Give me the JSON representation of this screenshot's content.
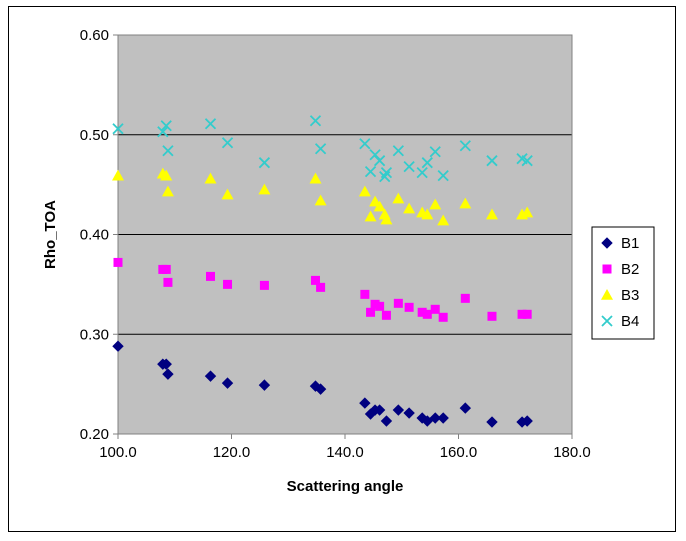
{
  "chart_data": {
    "type": "scatter",
    "title": "",
    "xlabel": "Scattering angle",
    "ylabel": "Rho_TOA",
    "xlim": [
      100.0,
      180.0
    ],
    "ylim": [
      0.2,
      0.6
    ],
    "x_ticks": [
      100,
      120,
      140,
      160,
      180
    ],
    "x_tick_labels": [
      "100.0",
      "120.0",
      "140.0",
      "160.0",
      "180.0"
    ],
    "y_ticks": [
      0.2,
      0.3,
      0.4,
      0.5,
      0.6
    ],
    "y_tick_labels": [
      "0.20",
      "0.30",
      "0.40",
      "0.50",
      "0.60"
    ],
    "grid": "horizontal",
    "plot_background": "#c0c0c0",
    "legend_position": "right",
    "series": [
      {
        "name": "B1",
        "marker": "diamond",
        "color": "#000080",
        "x": [
          100.0,
          107.9,
          108.5,
          108.8,
          116.3,
          119.3,
          125.8,
          134.8,
          135.7,
          143.5,
          144.5,
          145.3,
          146.1,
          147.3,
          149.4,
          151.3,
          153.6,
          154.5,
          155.9,
          157.3,
          161.2,
          165.9,
          171.2,
          172.1
        ],
        "y": [
          0.288,
          0.27,
          0.27,
          0.26,
          0.258,
          0.251,
          0.249,
          0.248,
          0.245,
          0.231,
          0.22,
          0.224,
          0.224,
          0.213,
          0.224,
          0.221,
          0.216,
          0.213,
          0.216,
          0.216,
          0.226,
          0.212,
          0.212,
          0.213
        ]
      },
      {
        "name": "B2",
        "marker": "square",
        "color": "#ff00ff",
        "x": [
          100.0,
          107.9,
          108.5,
          108.8,
          116.3,
          119.3,
          125.8,
          134.8,
          135.7,
          143.5,
          144.5,
          145.3,
          146.1,
          147.3,
          149.4,
          151.3,
          153.6,
          154.5,
          155.9,
          157.3,
          161.2,
          165.9,
          171.2,
          172.1
        ],
        "y": [
          0.372,
          0.365,
          0.365,
          0.352,
          0.358,
          0.35,
          0.349,
          0.354,
          0.347,
          0.34,
          0.322,
          0.33,
          0.328,
          0.319,
          0.331,
          0.327,
          0.322,
          0.32,
          0.325,
          0.317,
          0.336,
          0.318,
          0.32,
          0.32
        ]
      },
      {
        "name": "B3",
        "marker": "triangle",
        "color": "#ffff00",
        "x": [
          100.0,
          107.9,
          108.5,
          108.8,
          116.3,
          119.3,
          125.8,
          134.8,
          135.7,
          143.5,
          144.5,
          145.3,
          146.1,
          147.0,
          147.3,
          149.4,
          151.3,
          153.6,
          154.5,
          155.9,
          157.3,
          161.2,
          165.9,
          171.2,
          172.1
        ],
        "y": [
          0.459,
          0.461,
          0.459,
          0.443,
          0.456,
          0.44,
          0.445,
          0.456,
          0.434,
          0.443,
          0.418,
          0.433,
          0.428,
          0.42,
          0.415,
          0.436,
          0.426,
          0.422,
          0.42,
          0.43,
          0.414,
          0.431,
          0.42,
          0.42,
          0.422
        ]
      },
      {
        "name": "B4",
        "marker": "x",
        "color": "#33cccc",
        "x": [
          100.0,
          107.9,
          108.5,
          108.8,
          116.3,
          119.3,
          125.8,
          134.8,
          135.7,
          143.5,
          144.5,
          145.3,
          146.1,
          147.0,
          147.3,
          149.4,
          151.3,
          153.6,
          154.5,
          155.9,
          157.3,
          161.2,
          165.9,
          171.2,
          172.1
        ],
        "y": [
          0.506,
          0.503,
          0.509,
          0.484,
          0.511,
          0.492,
          0.472,
          0.514,
          0.486,
          0.491,
          0.463,
          0.48,
          0.474,
          0.458,
          0.462,
          0.484,
          0.468,
          0.462,
          0.472,
          0.483,
          0.459,
          0.489,
          0.474,
          0.476,
          0.474
        ]
      }
    ]
  }
}
